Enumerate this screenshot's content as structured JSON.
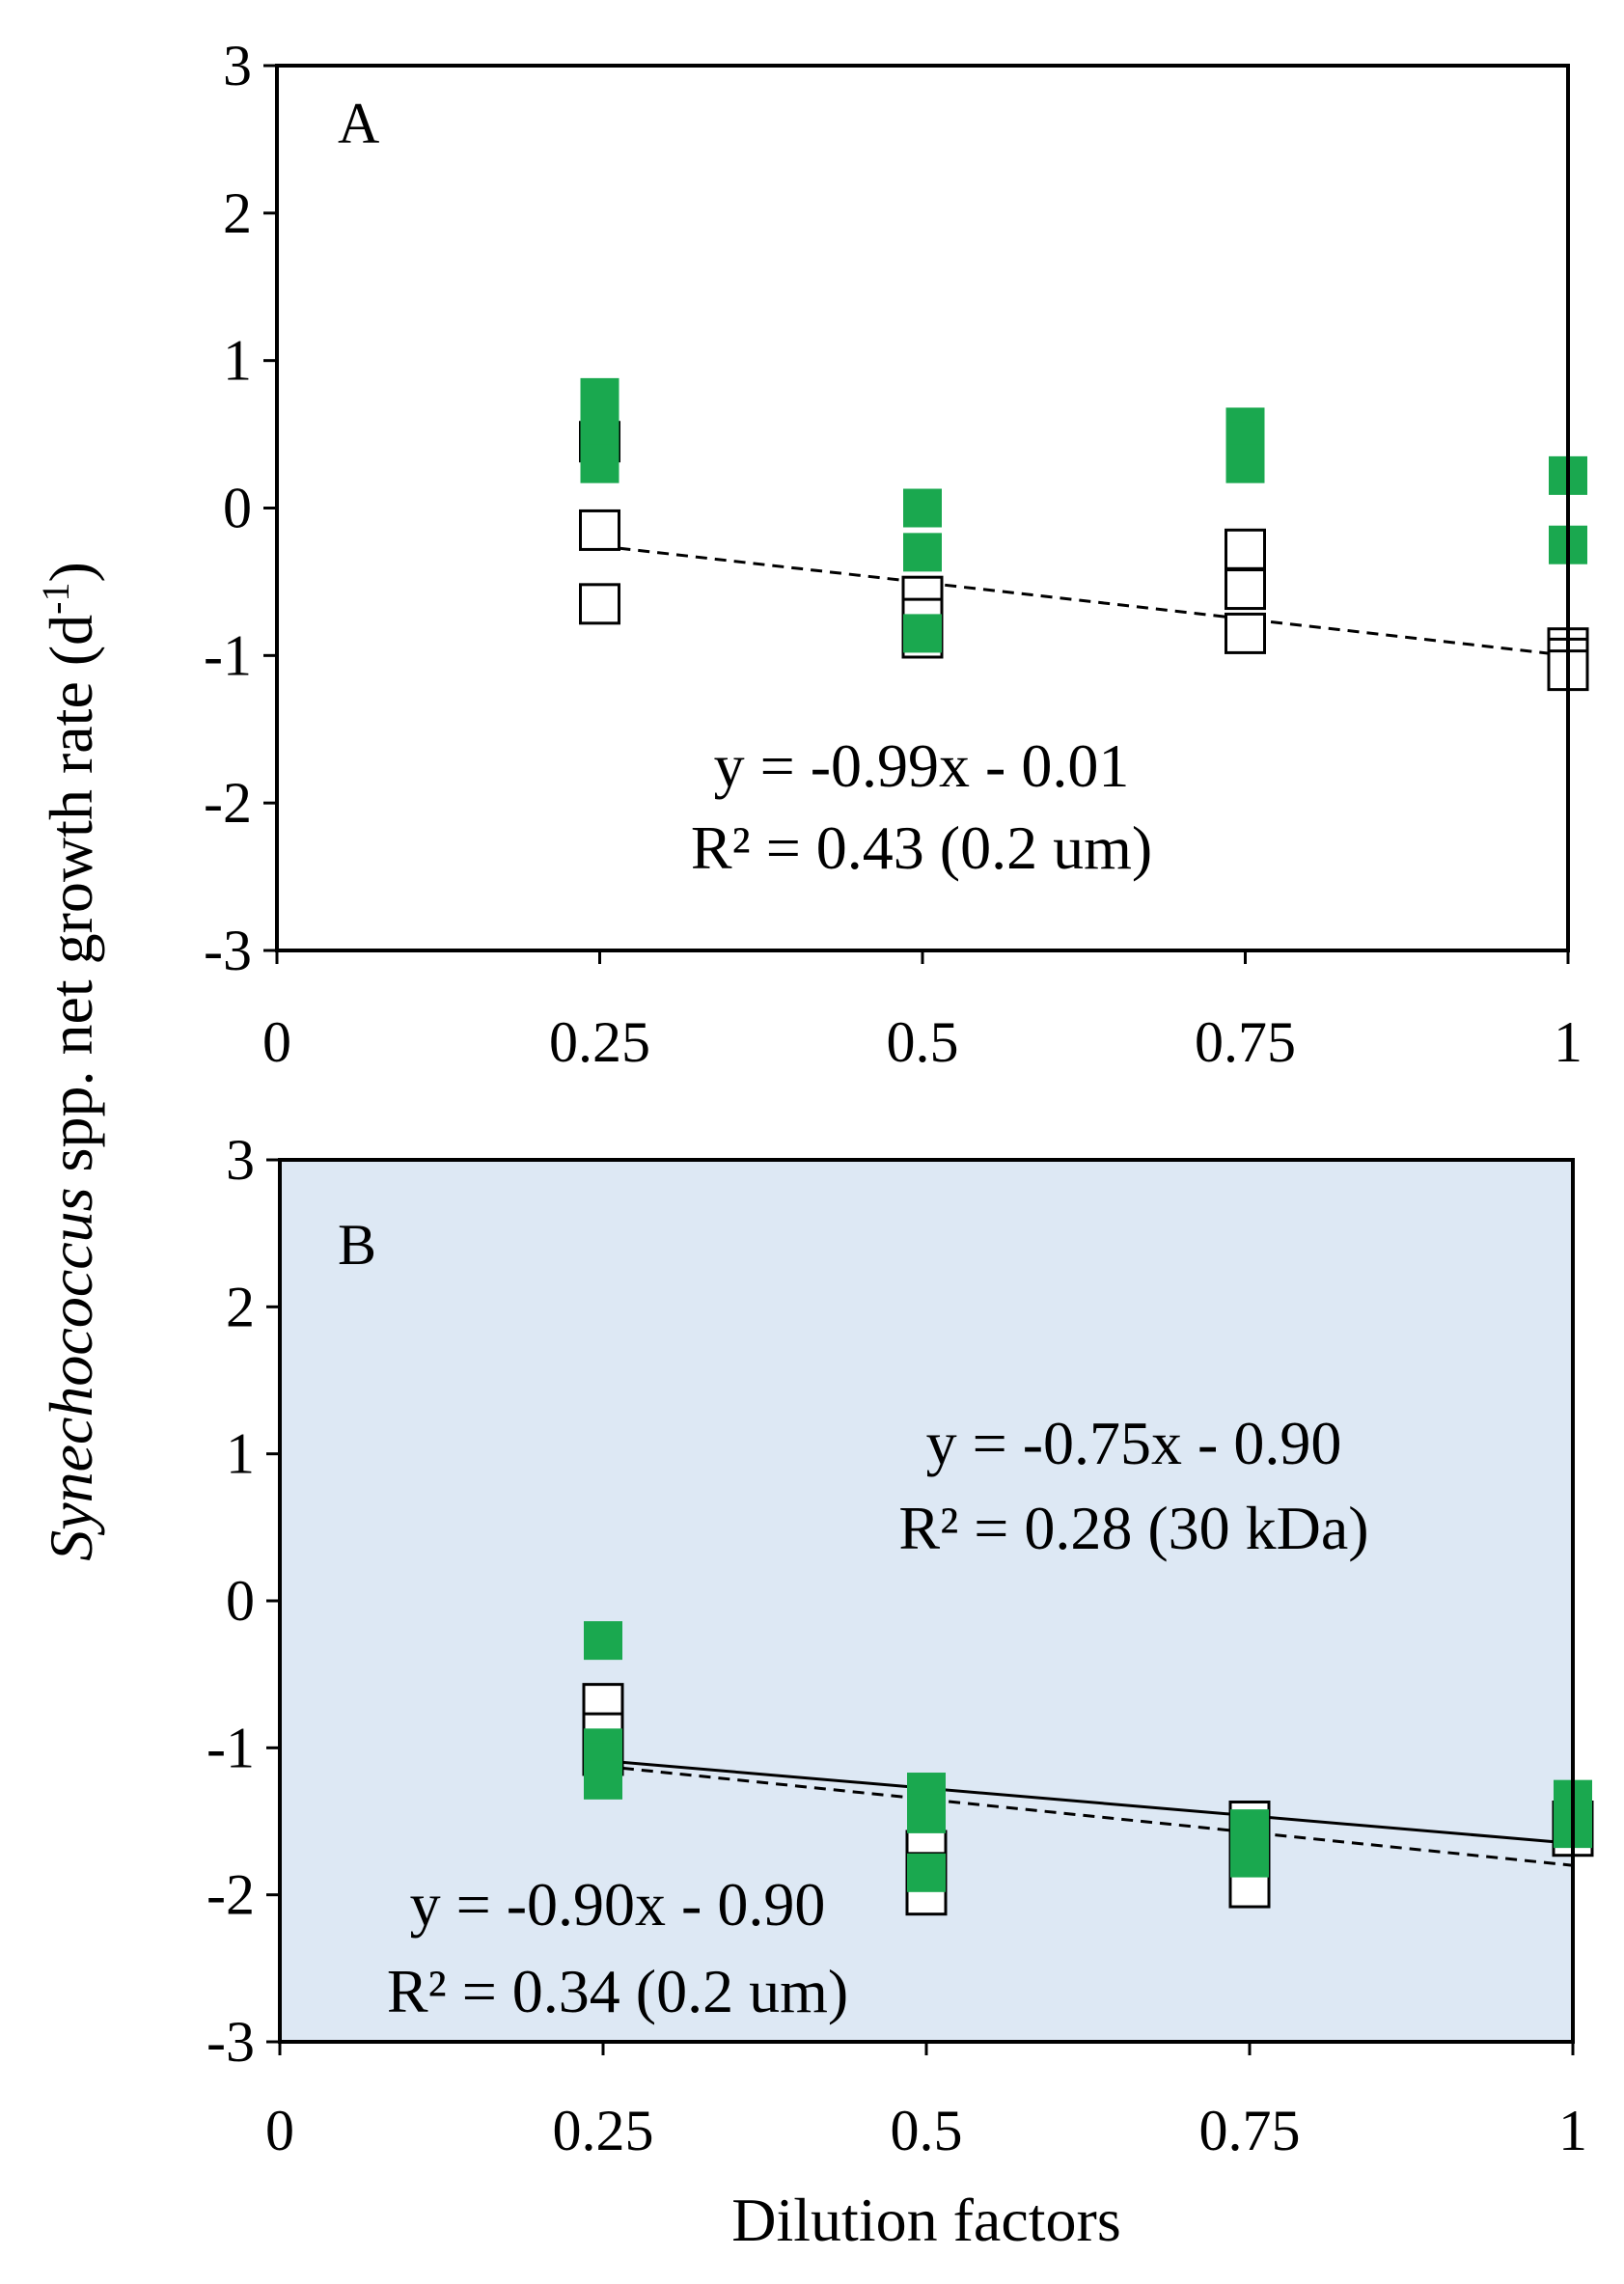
{
  "chart_data": [
    {
      "type": "scatter",
      "panel_label": "A",
      "background": "#ffffff",
      "xlim": [
        0,
        1
      ],
      "ylim": [
        -3,
        3
      ],
      "x_ticks": [
        "0",
        "0.25",
        "0.5",
        "0.75",
        "1"
      ],
      "y_ticks": [
        "3",
        "2",
        "1",
        "0",
        "-1",
        "-2",
        "-3"
      ],
      "series": [
        {
          "name": "0.2 um (open squares)",
          "marker": "open-square",
          "points": [
            [
              0.25,
              0.45
            ],
            [
              0.25,
              -0.15
            ],
            [
              0.25,
              -0.65
            ],
            [
              0.5,
              -0.6
            ],
            [
              0.5,
              -0.75
            ],
            [
              0.5,
              -0.88
            ],
            [
              0.75,
              -0.28
            ],
            [
              0.75,
              -0.55
            ],
            [
              0.75,
              -0.85
            ],
            [
              1,
              -0.95
            ],
            [
              1,
              -1.02
            ],
            [
              1,
              -1.1
            ]
          ]
        },
        {
          "name": "green squares",
          "marker": "filled-square",
          "color": "#1aa84f",
          "points": [
            [
              0.25,
              0.75
            ],
            [
              0.25,
              0.5
            ],
            [
              0.25,
              0.3
            ],
            [
              0.5,
              0.0
            ],
            [
              0.5,
              -0.3
            ],
            [
              0.5,
              -0.85
            ],
            [
              0.75,
              0.55
            ],
            [
              0.75,
              0.45
            ],
            [
              0.75,
              0.3
            ],
            [
              1,
              0.22
            ],
            [
              1,
              -0.25
            ]
          ]
        }
      ],
      "trendlines": [
        {
          "name": "0.2 um fit",
          "style": "dashed",
          "slope": -0.99,
          "intercept": -0.01,
          "x_range": [
            0.25,
            1
          ]
        }
      ],
      "annotations": [
        {
          "text": "y = -0.99x - 0.01"
        },
        {
          "text": "R² = 0.43 (0.2 um)"
        }
      ]
    },
    {
      "type": "scatter",
      "panel_label": "B",
      "background": "#dde8f4",
      "xlim": [
        0,
        1
      ],
      "ylim": [
        -3,
        3
      ],
      "x_ticks": [
        "0",
        "0.25",
        "0.5",
        "0.75",
        "1"
      ],
      "y_ticks": [
        "3",
        "2",
        "1",
        "0",
        "-1",
        "-2",
        "-3"
      ],
      "series": [
        {
          "name": "0.2 um (open squares)",
          "marker": "open-square",
          "points": [
            [
              0.25,
              -0.7
            ],
            [
              0.25,
              -0.9
            ],
            [
              0.25,
              -1.05
            ],
            [
              0.5,
              -1.7
            ],
            [
              0.5,
              -1.85
            ],
            [
              0.5,
              -2.0
            ],
            [
              0.75,
              -1.5
            ],
            [
              0.75,
              -1.75
            ],
            [
              0.75,
              -1.95
            ],
            [
              1,
              -1.5
            ],
            [
              1,
              -1.6
            ]
          ]
        },
        {
          "name": "30 kDa (green squares)",
          "marker": "filled-square",
          "color": "#1aa84f",
          "points": [
            [
              0.25,
              -0.27
            ],
            [
              0.25,
              -1.0
            ],
            [
              0.25,
              -1.1
            ],
            [
              0.25,
              -1.22
            ],
            [
              0.5,
              -1.3
            ],
            [
              0.5,
              -1.45
            ],
            [
              0.5,
              -1.85
            ],
            [
              0.75,
              -1.55
            ],
            [
              0.75,
              -1.65
            ],
            [
              0.75,
              -1.75
            ],
            [
              1,
              -1.35
            ],
            [
              1,
              -1.45
            ],
            [
              1,
              -1.55
            ]
          ]
        }
      ],
      "trendlines": [
        {
          "name": "30 kDa fit",
          "style": "solid",
          "slope": -0.75,
          "intercept": -0.9,
          "x_range": [
            0.25,
            1
          ]
        },
        {
          "name": "0.2 um fit",
          "style": "dashed",
          "slope": -0.9,
          "intercept": -0.9,
          "x_range": [
            0.25,
            1
          ]
        }
      ],
      "annotations": [
        {
          "text": "y = -0.75x - 0.90"
        },
        {
          "text": "R² = 0.28 (30 kDa)"
        },
        {
          "text": "y = -0.90x - 0.90"
        },
        {
          "text": "R² = 0.34 (0.2 um)"
        }
      ]
    }
  ],
  "axes": {
    "y_label_italic": "Synechococcus",
    "y_label_rest": " spp. net growth rate (d",
    "y_label_sup": "-1",
    "y_label_close": ")",
    "x_label": "Dilution factors"
  }
}
